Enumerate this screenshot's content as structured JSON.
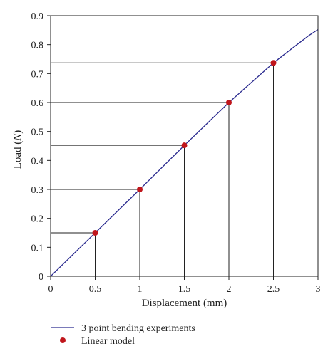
{
  "chart_data": {
    "type": "line",
    "xlabel": "Displacement (mm)",
    "ylabel": "Load (N)",
    "xlim": [
      0,
      3
    ],
    "ylim": [
      0,
      0.9
    ],
    "xticks": [
      "0",
      "0.5",
      "1",
      "1.5",
      "2",
      "2.5",
      "3"
    ],
    "yticks": [
      "0",
      "0.1",
      "0.2",
      "0.3",
      "0.4",
      "0.5",
      "0.6",
      "0.7",
      "0.8",
      "0.9"
    ],
    "grid": false,
    "legend_position": "bottom",
    "series": [
      {
        "name": "3 point bending experiments",
        "kind": "line",
        "color": "#2b2b8f",
        "x": [
          0,
          0.5,
          1.0,
          1.5,
          2.0,
          2.5,
          2.7,
          2.9,
          3.0
        ],
        "y": [
          0,
          0.15,
          0.3,
          0.452,
          0.6,
          0.737,
          0.785,
          0.832,
          0.852
        ]
      },
      {
        "name": "Linear model",
        "kind": "scatter",
        "color": "#c0161c",
        "x": [
          0.5,
          1.0,
          1.5,
          2.0,
          2.5
        ],
        "y": [
          0.15,
          0.3,
          0.452,
          0.6,
          0.737
        ]
      }
    ]
  }
}
